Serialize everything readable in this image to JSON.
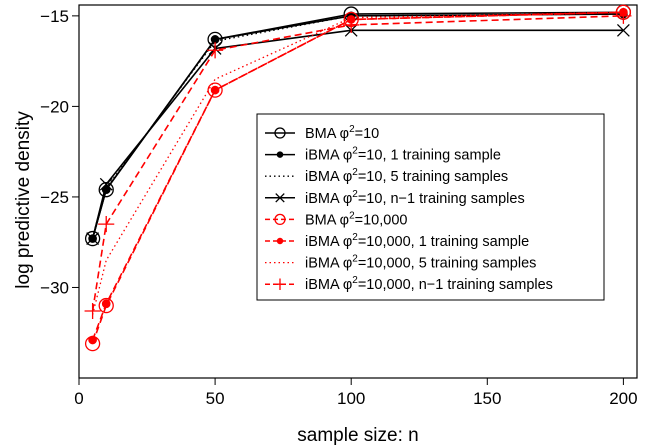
{
  "chart_data": {
    "type": "line",
    "xlabel": "sample size: n",
    "ylabel": "log predictive density",
    "xlim": [
      0,
      205
    ],
    "ylim": [
      -35,
      -14.4
    ],
    "xticks": [
      0,
      50,
      100,
      150,
      200
    ],
    "xtick_labels": [
      "0",
      "50",
      "100",
      "150",
      "200"
    ],
    "yticks": [
      -30,
      -25,
      -20,
      -15
    ],
    "ytick_labels": [
      "−30",
      "−25",
      "−20",
      "−15"
    ],
    "grid": false,
    "legend_position": "center-right",
    "x": [
      5,
      10,
      50,
      100,
      200
    ],
    "series": [
      {
        "name": "BMA φ²=10",
        "legend_main": "BMA φ",
        "legend_sup": "2",
        "legend_rest": "=10",
        "color": "#000000",
        "dash": "solid",
        "marker": "open-circle",
        "values": [
          -27.3,
          -24.6,
          -16.3,
          -14.9,
          -14.8
        ]
      },
      {
        "name": "iBMA φ²=10, 1 training sample",
        "legend_main": "iBMA φ",
        "legend_sup": "2",
        "legend_rest": "=10, 1 training sample",
        "color": "#000000",
        "dash": "solid",
        "marker": "filled-circle",
        "values": [
          -27.3,
          -24.6,
          -16.3,
          -15.0,
          -14.9
        ]
      },
      {
        "name": "iBMA φ²=10, 5 training samples",
        "legend_main": "iBMA φ",
        "legend_sup": "2",
        "legend_rest": "=10, 5 training samples",
        "color": "#000000",
        "dash": "dotted",
        "marker": "none",
        "values": [
          -27.2,
          -24.5,
          -16.4,
          -15.0,
          -14.9
        ]
      },
      {
        "name": "iBMA φ²=10, n−1 training samples",
        "legend_main": "iBMA φ",
        "legend_sup": "2",
        "legend_rest": "=10, n−1 training samples",
        "color": "#000000",
        "dash": "solid",
        "marker": "x",
        "values": [
          -27.3,
          -24.3,
          -16.8,
          -15.8,
          -15.8
        ]
      },
      {
        "name": "BMA φ²=10,000",
        "legend_main": "BMA φ",
        "legend_sup": "2",
        "legend_rest": "=10,000",
        "color": "#ff0000",
        "dash": "dashed",
        "marker": "open-circle",
        "values": [
          -33.1,
          -31.0,
          -19.1,
          -15.2,
          -14.8
        ]
      },
      {
        "name": "iBMA φ²=10,000, 1 training sample",
        "legend_main": "iBMA φ",
        "legend_sup": "2",
        "legend_rest": "=10,000, 1 training sample",
        "color": "#ff0000",
        "dash": "dashed",
        "marker": "filled-circle",
        "values": [
          -32.9,
          -30.9,
          -19.1,
          -15.2,
          -14.8
        ]
      },
      {
        "name": "iBMA φ²=10,000, 5 training samples",
        "legend_main": "iBMA φ",
        "legend_sup": "2",
        "legend_rest": "=10,000, 5 training samples",
        "color": "#ff0000",
        "dash": "dotted",
        "marker": "none",
        "values": [
          -31.5,
          -28.5,
          -18.5,
          -15.1,
          -14.8
        ]
      },
      {
        "name": "iBMA φ²=10,000, n−1 training samples",
        "legend_main": "iBMA φ",
        "legend_sup": "2",
        "legend_rest": "=10,000, n−1 training samples",
        "color": "#ff0000",
        "dash": "dashed",
        "marker": "plus",
        "values": [
          -31.3,
          -26.5,
          -16.9,
          -15.5,
          -15.0
        ]
      }
    ]
  }
}
